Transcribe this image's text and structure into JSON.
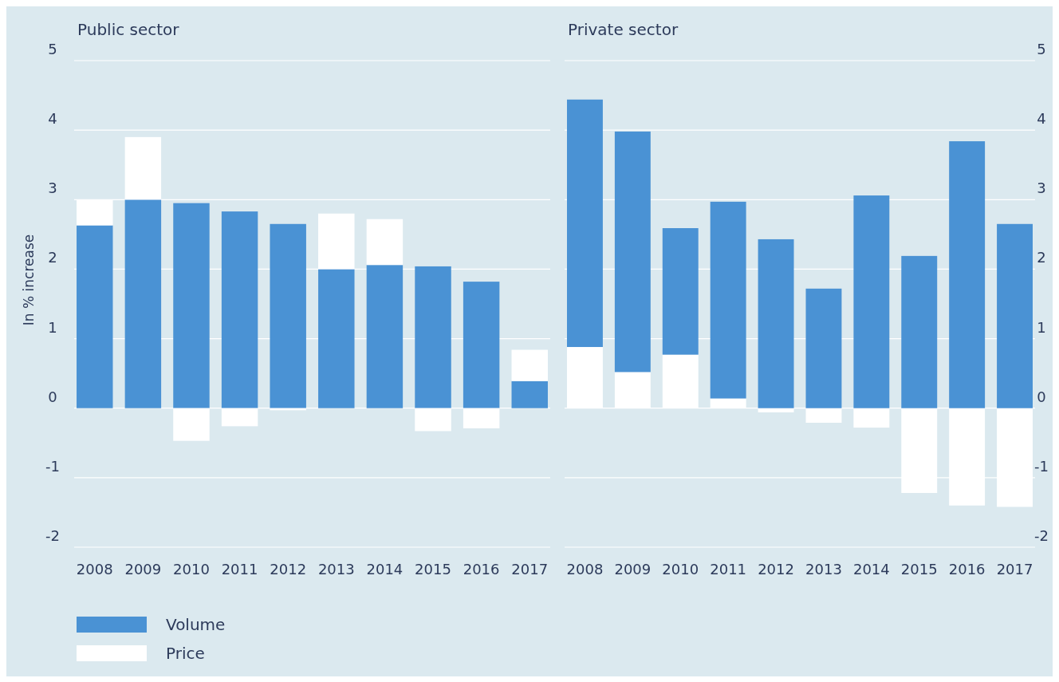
{
  "chart_data": [
    {
      "type": "bar",
      "title": "Public sector",
      "ylabel": "In % increase",
      "stacked": true,
      "categories": [
        "2008",
        "2009",
        "2010",
        "2011",
        "2012",
        "2013",
        "2014",
        "2015",
        "2016",
        "2017"
      ],
      "series": [
        {
          "name": "Volume",
          "color": "#4a92d4",
          "values": [
            2.63,
            3.0,
            2.95,
            2.83,
            2.65,
            2.0,
            2.06,
            2.04,
            1.82,
            0.39
          ]
        },
        {
          "name": "Price",
          "color": "#ffffff",
          "values": [
            0.37,
            0.9,
            -0.47,
            -0.26,
            -0.03,
            0.8,
            0.66,
            -0.33,
            -0.29,
            0.45
          ]
        }
      ],
      "ylim": [
        -2,
        5
      ],
      "yticks": [
        -2,
        -1,
        0,
        1,
        2,
        3,
        4,
        5
      ],
      "grid": "y",
      "legend": "bottom left"
    },
    {
      "type": "bar",
      "title": "Private sector",
      "stacked": true,
      "categories": [
        "2008",
        "2009",
        "2010",
        "2011",
        "2012",
        "2013",
        "2014",
        "2015",
        "2016",
        "2017"
      ],
      "series": [
        {
          "color": "#ffffff",
          "values": [
            0.88,
            0.52,
            0.77,
            0.14,
            -0.06,
            -0.21,
            -0.28,
            -1.22,
            -1.4,
            -1.42
          ]
        },
        {
          "color": "#4a92d4",
          "values": [
            3.56,
            3.46,
            1.82,
            2.83,
            2.43,
            1.72,
            3.06,
            2.19,
            3.84,
            2.65
          ]
        }
      ],
      "ylim": [
        -2,
        5
      ],
      "yticks": [
        -2,
        -1,
        0,
        1,
        2,
        3,
        4,
        5
      ],
      "grid": "y",
      "legend": false
    }
  ]
}
